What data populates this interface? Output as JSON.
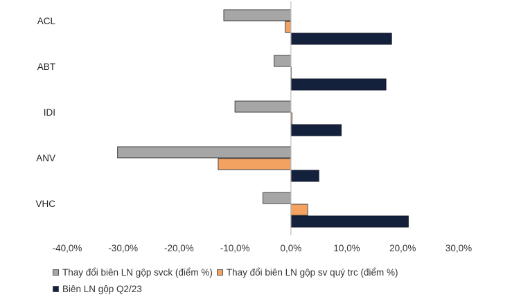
{
  "chart_data": {
    "type": "bar",
    "orientation": "horizontal",
    "categories": [
      "ACL",
      "ABT",
      "IDI",
      "ANV",
      "VHC"
    ],
    "series": [
      {
        "name": "Thay đổi biên LN gộp svck (điểm %)",
        "color": "#a6a6a6",
        "values": [
          -12.0,
          -3.0,
          -10.0,
          -31.0,
          -5.0
        ]
      },
      {
        "name": "Thay đổi biên LN gộp sv quý trc (điểm %)",
        "color": "#f4a261",
        "values": [
          -1.0,
          0.0,
          0.2,
          -13.0,
          3.0
        ]
      },
      {
        "name": "Biên LN gộp Q2/23",
        "color": "#14213d",
        "values": [
          18.0,
          17.0,
          9.0,
          5.0,
          21.0
        ]
      }
    ],
    "xlim": [
      -40,
      30
    ],
    "xticks": [
      "-40,0%",
      "-30,0%",
      "-20,0%",
      "-10,0%",
      "0,0%",
      "10,0%",
      "20,0%",
      "30,0%"
    ],
    "legend_position": "bottom"
  }
}
